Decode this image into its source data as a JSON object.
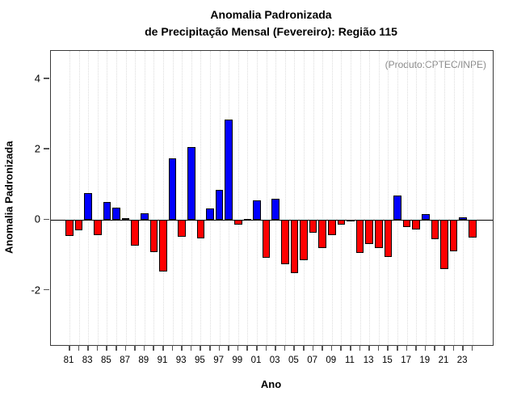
{
  "title": {
    "line1": "Anomalia Padronizada",
    "line2": "de Precipitação Mensal (Fevereiro): Região 115"
  },
  "annotation": "(Produto:CPTEC/INPE)",
  "x_axis": {
    "label": "Ano"
  },
  "y_axis": {
    "label": "Anomalia Padronizada",
    "ticks": [
      4,
      2,
      0,
      -2
    ]
  },
  "colors": {
    "positive": "#0000ff",
    "negative": "#ff0000",
    "bar_border": "#000000",
    "grid": "#dcdcdc",
    "frame": "#3a3a3a",
    "annotation_text": "#8c8c8c"
  },
  "chart_data": {
    "type": "bar",
    "title": "Anomalia Padronizada de Precipitação Mensal (Fevereiro): Região 115",
    "xlabel": "Ano",
    "ylabel": "Anomalia Padronizada",
    "categories": [
      "81",
      "82",
      "83",
      "84",
      "85",
      "86",
      "87",
      "88",
      "89",
      "90",
      "91",
      "92",
      "93",
      "94",
      "95",
      "96",
      "97",
      "98",
      "99",
      "00",
      "01",
      "02",
      "03",
      "04",
      "05",
      "06",
      "07",
      "08",
      "09",
      "10",
      "11",
      "12",
      "13",
      "14",
      "15",
      "16",
      "17",
      "18",
      "19",
      "20",
      "21",
      "22",
      "23",
      "24"
    ],
    "values": [
      -0.45,
      -0.3,
      0.77,
      -0.42,
      0.51,
      0.35,
      0.06,
      -0.72,
      0.18,
      -0.9,
      -1.45,
      1.75,
      -0.48,
      2.08,
      -0.53,
      0.33,
      0.85,
      2.85,
      -0.12,
      0.03,
      0.55,
      -1.07,
      0.6,
      -1.25,
      -1.51,
      -1.13,
      -0.37,
      -0.8,
      -0.44,
      -0.14,
      -0.05,
      -0.94,
      -0.67,
      -0.8,
      -1.05,
      0.7,
      -0.2,
      -0.26,
      0.17,
      -0.55,
      -1.39,
      -0.88,
      0.08,
      -0.5
    ],
    "ylim": [
      -3.55,
      4.8
    ],
    "yticks": [
      4,
      2,
      0,
      -2
    ],
    "label_every": 2,
    "grid": "vertical-dotted",
    "zero_line": true,
    "legend": "none"
  }
}
